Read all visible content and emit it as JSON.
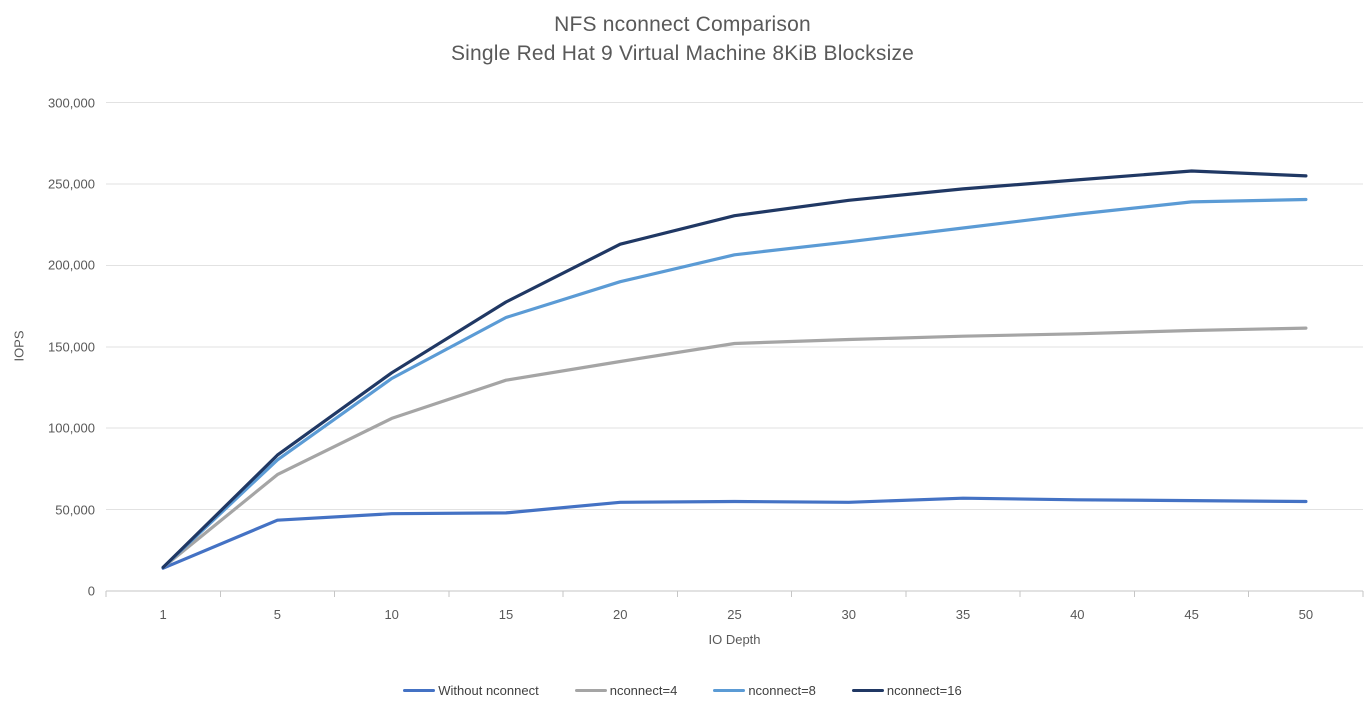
{
  "chart_data": {
    "type": "line",
    "title": "NFS nconnect Comparison",
    "subtitle": "Single Red Hat 9 Virtual Machine 8KiB Blocksize",
    "xlabel": "IO Depth",
    "ylabel": "IOPS",
    "categories": [
      "1",
      "5",
      "10",
      "15",
      "20",
      "25",
      "30",
      "35",
      "40",
      "45",
      "50"
    ],
    "ylim": [
      0,
      300000
    ],
    "ytick_step": 50000,
    "ytick_labels": [
      "0",
      "50,000",
      "100,000",
      "150,000",
      "200,000",
      "250,000",
      "300,000"
    ],
    "grid": true,
    "legend_position": "bottom",
    "series": [
      {
        "name": "Without nconnect",
        "color": "#4472C4",
        "values": [
          14000,
          43500,
          47500,
          48000,
          54500,
          55000,
          54500,
          57000,
          56000,
          55500,
          55000
        ]
      },
      {
        "name": "nconnect=4",
        "color": "#A5A5A5",
        "values": [
          14500,
          71500,
          106000,
          129500,
          141000,
          152000,
          154500,
          156500,
          158000,
          160000,
          161500
        ]
      },
      {
        "name": "nconnect=8",
        "color": "#5B9BD5",
        "values": [
          14500,
          80500,
          130500,
          168000,
          190000,
          206500,
          214500,
          223000,
          231500,
          239000,
          240500
        ]
      },
      {
        "name": "nconnect=16",
        "color": "#203864",
        "values": [
          14500,
          83500,
          134000,
          177500,
          213000,
          230500,
          240000,
          247000,
          252500,
          258000,
          255000
        ]
      }
    ],
    "style": {
      "gridline_color": "#E2E2E2",
      "axis_line_color": "#C6C6C6",
      "tick_color": "#C6C6C6",
      "text_color": "#595959",
      "legend_text_color": "#404040",
      "background": "#FFFFFF"
    }
  }
}
